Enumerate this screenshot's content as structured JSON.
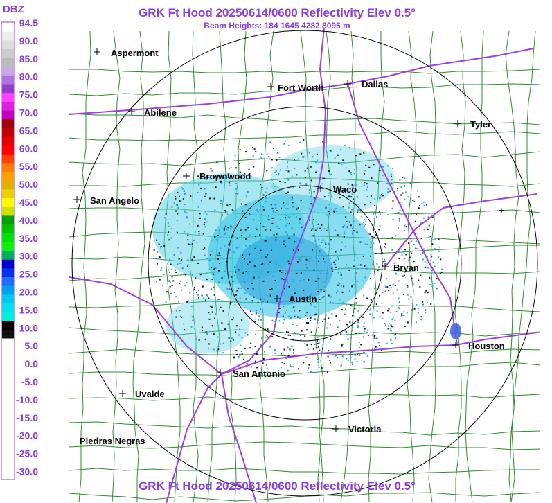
{
  "header": {
    "title": "GRK Ft Hood 20250614/0600 Reflectivity Elev 0.5°",
    "subtitle": "Beam Heights: 184 1645 4282 8095 m"
  },
  "legend": {
    "unit": "DBZ",
    "labels": [
      "94.5",
      "90.0",
      "85.0",
      "80.0",
      "75.0",
      "70.0",
      "65.0",
      "60.0",
      "55.0",
      "50.0",
      "45.0",
      "40.0",
      "35.0",
      "30.0",
      "25.0",
      "20.0",
      "15.0",
      "10.0",
      "5.0",
      "0.0",
      "-5.0",
      "-10.0",
      "-15.0",
      "-20.0",
      "-25.0",
      "-30.0"
    ]
  },
  "cities": [
    {
      "label": "Aspermont"
    },
    {
      "label": "Fort Worth"
    },
    {
      "label": "Dallas"
    },
    {
      "label": "Abilene"
    },
    {
      "label": "Tyler"
    },
    {
      "label": "Brownwood"
    },
    {
      "label": "Waco"
    },
    {
      "label": "San Angelo"
    },
    {
      "label": "Bryan"
    },
    {
      "label": "Austin"
    },
    {
      "label": "Houston"
    },
    {
      "label": "San Antonio"
    },
    {
      "label": "Uvalde"
    },
    {
      "label": "Victoria"
    },
    {
      "label": "Piedras Negras"
    }
  ]
}
